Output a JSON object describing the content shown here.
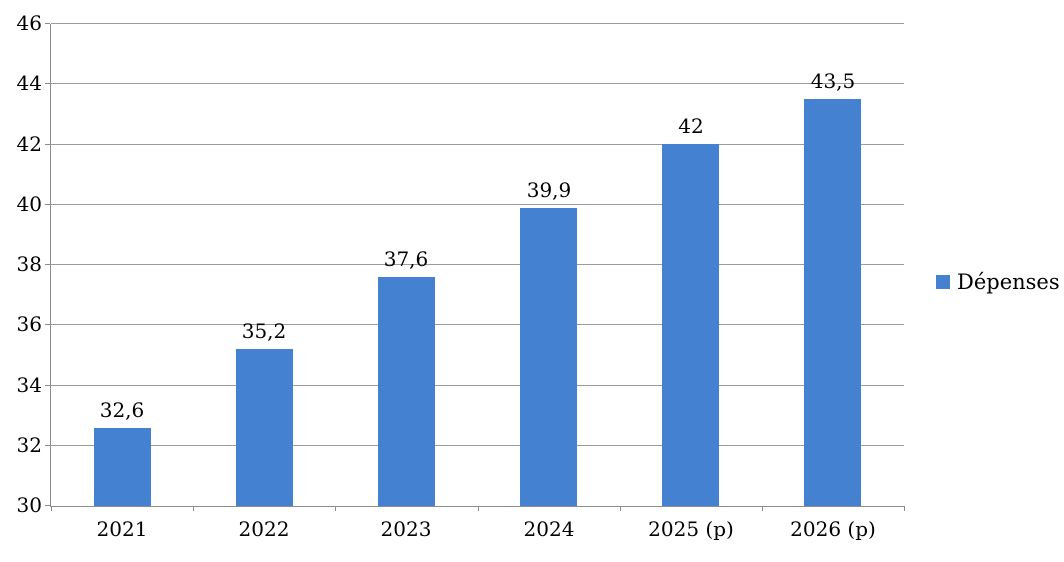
{
  "chart_data": {
    "type": "bar",
    "title": "",
    "xlabel": "",
    "ylabel": "",
    "categories": [
      "2021",
      "2022",
      "2023",
      "2024",
      "2025 (p)",
      "2026 (p)"
    ],
    "series": [
      {
        "name": "Dépenses",
        "values": [
          32.6,
          35.2,
          37.6,
          39.9,
          42,
          43.5
        ],
        "value_labels": [
          "32,6",
          "35,2",
          "37,6",
          "39,9",
          "42",
          "43,5"
        ]
      }
    ],
    "ylim": [
      30,
      46
    ],
    "ytick_step": 2,
    "ytick_labels": [
      "30",
      "32",
      "34",
      "36",
      "38",
      "40",
      "42",
      "44",
      "46"
    ],
    "grid": true,
    "legend_position": "right",
    "colors": {
      "bar": "#4581D1",
      "gridline": "#9B9B9B",
      "axis": "#8C8C8C",
      "text": "#000000",
      "background": "#FFFFFF"
    }
  }
}
